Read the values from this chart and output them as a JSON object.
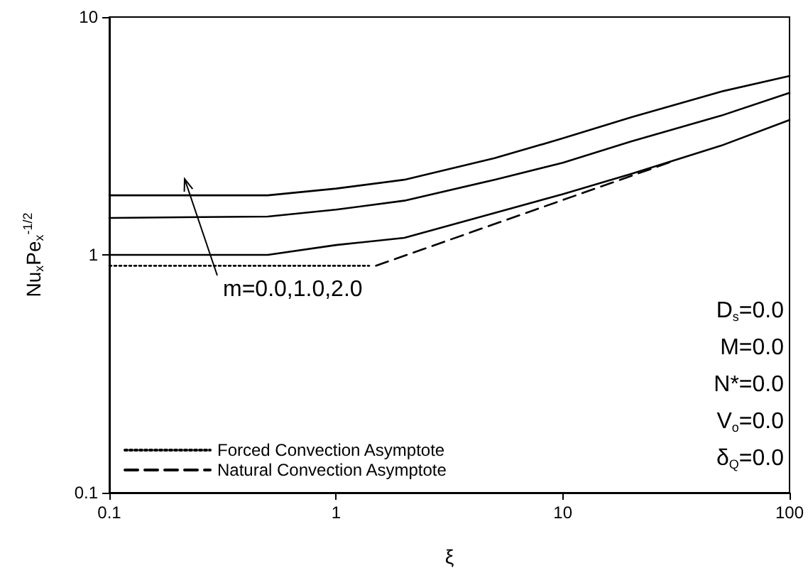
{
  "chart_data": {
    "type": "line",
    "xlabel": "ξ",
    "ylabel": "Nu$_{x}$Pe$_{x}$$^{-1/2}$",
    "log": "xy",
    "grid": false,
    "legend": "bottom left",
    "marker": "none",
    "xlim": [
      0.1,
      100
    ],
    "xticks": [
      0.1,
      1,
      10,
      100
    ],
    "ylim": [
      0.1,
      10
    ],
    "yticks": [
      0.1,
      1,
      10
    ],
    "series": [
      {
        "color": "#000000",
        "line_style": "solid",
        "x": [
          0.1,
          0.5,
          1,
          2,
          5,
          10,
          20,
          50,
          100
        ],
        "values": [
          1.78,
          1.78,
          1.9,
          2.07,
          2.55,
          3.09,
          3.79,
          4.86,
          5.65
        ]
      },
      {
        "color": "#000000",
        "line_style": "solid",
        "x": [
          0.1,
          0.5,
          1,
          2,
          5,
          10,
          20,
          50,
          100
        ],
        "values": [
          1.43,
          1.45,
          1.55,
          1.69,
          2.07,
          2.44,
          3.0,
          3.85,
          4.8
        ]
      },
      {
        "color": "#000000",
        "line_style": "solid",
        "x": [
          0.1,
          0.5,
          1,
          2,
          5,
          10,
          20,
          50,
          100
        ],
        "values": [
          1.0,
          1.0,
          1.1,
          1.18,
          1.5,
          1.8,
          2.19,
          2.88,
          3.69
        ]
      },
      {
        "name": "Forced Convection Asymptote",
        "color": "#000000",
        "line_style": "dotted",
        "x": [
          0.1,
          1.4
        ],
        "values": [
          0.9,
          0.9
        ]
      },
      {
        "name": "Natural Convection Asymptote",
        "color": "#000000",
        "line_style": "dashed",
        "x": [
          1.5,
          30
        ],
        "values": [
          0.9,
          2.46
        ]
      }
    ],
    "annotations": [
      "m=0.0,1.0,2.0",
      "D$_{s}$=0.0",
      "M=0.0",
      "N*=0.0",
      "V$_{o}$=0.0",
      "δ$_{Q}$=0.0"
    ]
  }
}
